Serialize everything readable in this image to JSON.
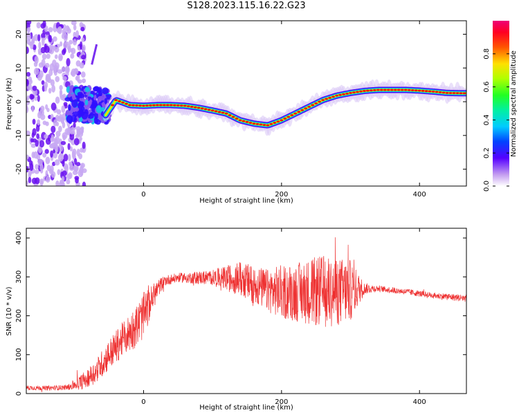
{
  "title": "S128.2023.115.16.22.G23",
  "chart_data": [
    {
      "type": "heatmap",
      "xlabel": "Height of straight line (km)",
      "ylabel": "Frequency (Hz)",
      "xlim": [
        -170,
        468
      ],
      "ylim": [
        -25,
        24
      ],
      "xticks": [
        0,
        200,
        400
      ],
      "yticks": [
        -20,
        -10,
        0,
        10,
        20
      ],
      "colorbar": {
        "label": "Normalized spectral amplitude",
        "range": [
          0,
          1
        ],
        "ticks": [
          0.0,
          0.2,
          0.4,
          0.6,
          0.8
        ]
      },
      "ridge": {
        "x": [
          -55,
          -40,
          -20,
          0,
          20,
          40,
          60,
          80,
          100,
          120,
          140,
          160,
          180,
          200,
          220,
          240,
          260,
          280,
          300,
          320,
          340,
          360,
          380,
          400,
          420,
          440,
          468
        ],
        "freq": [
          -4,
          0.5,
          -1,
          -1.2,
          -1,
          -1,
          -1.2,
          -1.8,
          -2.6,
          -3.5,
          -5.5,
          -6.5,
          -7,
          -5.5,
          -3.5,
          -1.5,
          0.5,
          1.8,
          2.6,
          3.2,
          3.5,
          3.5,
          3.5,
          3.3,
          3,
          2.6,
          2.5
        ]
      }
    },
    {
      "type": "line",
      "xlabel": "Height of straight line (km)",
      "ylabel": "SNR (10 * v/v)",
      "xlim": [
        -170,
        468
      ],
      "ylim": [
        0,
        425
      ],
      "xticks": [
        0,
        200,
        400
      ],
      "yticks": [
        0,
        100,
        200,
        300,
        400
      ],
      "series": [
        {
          "color": "#ee3030",
          "x": [
            -170,
            -140,
            -110,
            -90,
            -70,
            -50,
            -30,
            -10,
            0,
            10,
            20,
            30,
            50,
            100,
            140,
            160,
            180,
            200,
            220,
            240,
            260,
            280,
            300,
            320,
            340,
            380,
            420,
            468
          ],
          "mean": [
            15,
            14,
            16,
            30,
            55,
            100,
            140,
            175,
            200,
            235,
            268,
            290,
            298,
            298,
            295,
            280,
            265,
            262,
            260,
            262,
            262,
            262,
            265,
            270,
            270,
            262,
            252,
            245
          ],
          "spread": [
            6,
            6,
            7,
            20,
            30,
            40,
            45,
            55,
            60,
            40,
            25,
            14,
            12,
            20,
            45,
            50,
            55,
            70,
            75,
            85,
            95,
            90,
            80,
            15,
            8,
            8,
            8,
            10
          ]
        }
      ]
    }
  ]
}
